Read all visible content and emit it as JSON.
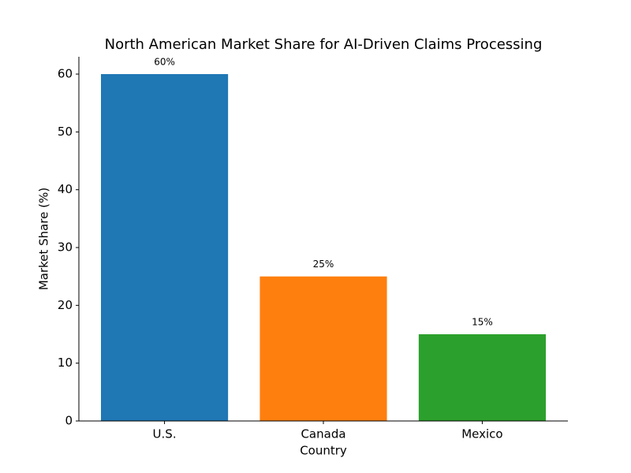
{
  "chart_data": {
    "type": "bar",
    "title": "North American Market Share for AI-Driven Claims Processing",
    "x_label": "Country",
    "y_label": "Market Share (%)",
    "categories": [
      "U.S.",
      "Canada",
      "Mexico"
    ],
    "values": [
      60,
      25,
      15
    ],
    "value_labels": [
      "60%",
      "25%",
      "15%"
    ],
    "colors": [
      "#1f77b4",
      "#ff7f0e",
      "#2ca02c"
    ],
    "ylim": [
      0,
      63
    ],
    "yticks": [
      0,
      10,
      20,
      30,
      40,
      50,
      60
    ],
    "grid": false
  }
}
